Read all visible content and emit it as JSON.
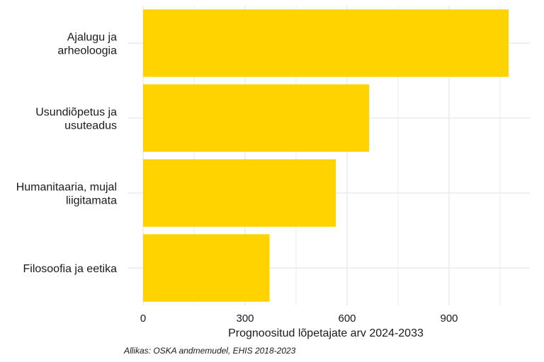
{
  "chart_data": {
    "type": "bar",
    "orientation": "horizontal",
    "categories": [
      [
        "Ajalugu ja",
        "arheoloogia"
      ],
      [
        "Usundiõpetus ja",
        "usuteadus"
      ],
      [
        "Humanitaaria, mujal",
        "liigitamata"
      ],
      [
        "Filosoofia ja eetika"
      ]
    ],
    "values": [
      1075,
      665,
      567,
      372
    ],
    "bar_color": "#FFD300",
    "grid_color": "#e6e6e6",
    "xlim": [
      0,
      1125
    ],
    "x_ticks": [
      0,
      300,
      600,
      900
    ],
    "x_tick_labels": [
      "0",
      "300",
      "600",
      "900"
    ],
    "xlabel": "Prognoositud lõpetajate arv 2024-2033",
    "ylabel": "",
    "grid": true,
    "legend": "none"
  },
  "caption": "Allikas: OSKA andmemudel, EHIS 2018-2023"
}
